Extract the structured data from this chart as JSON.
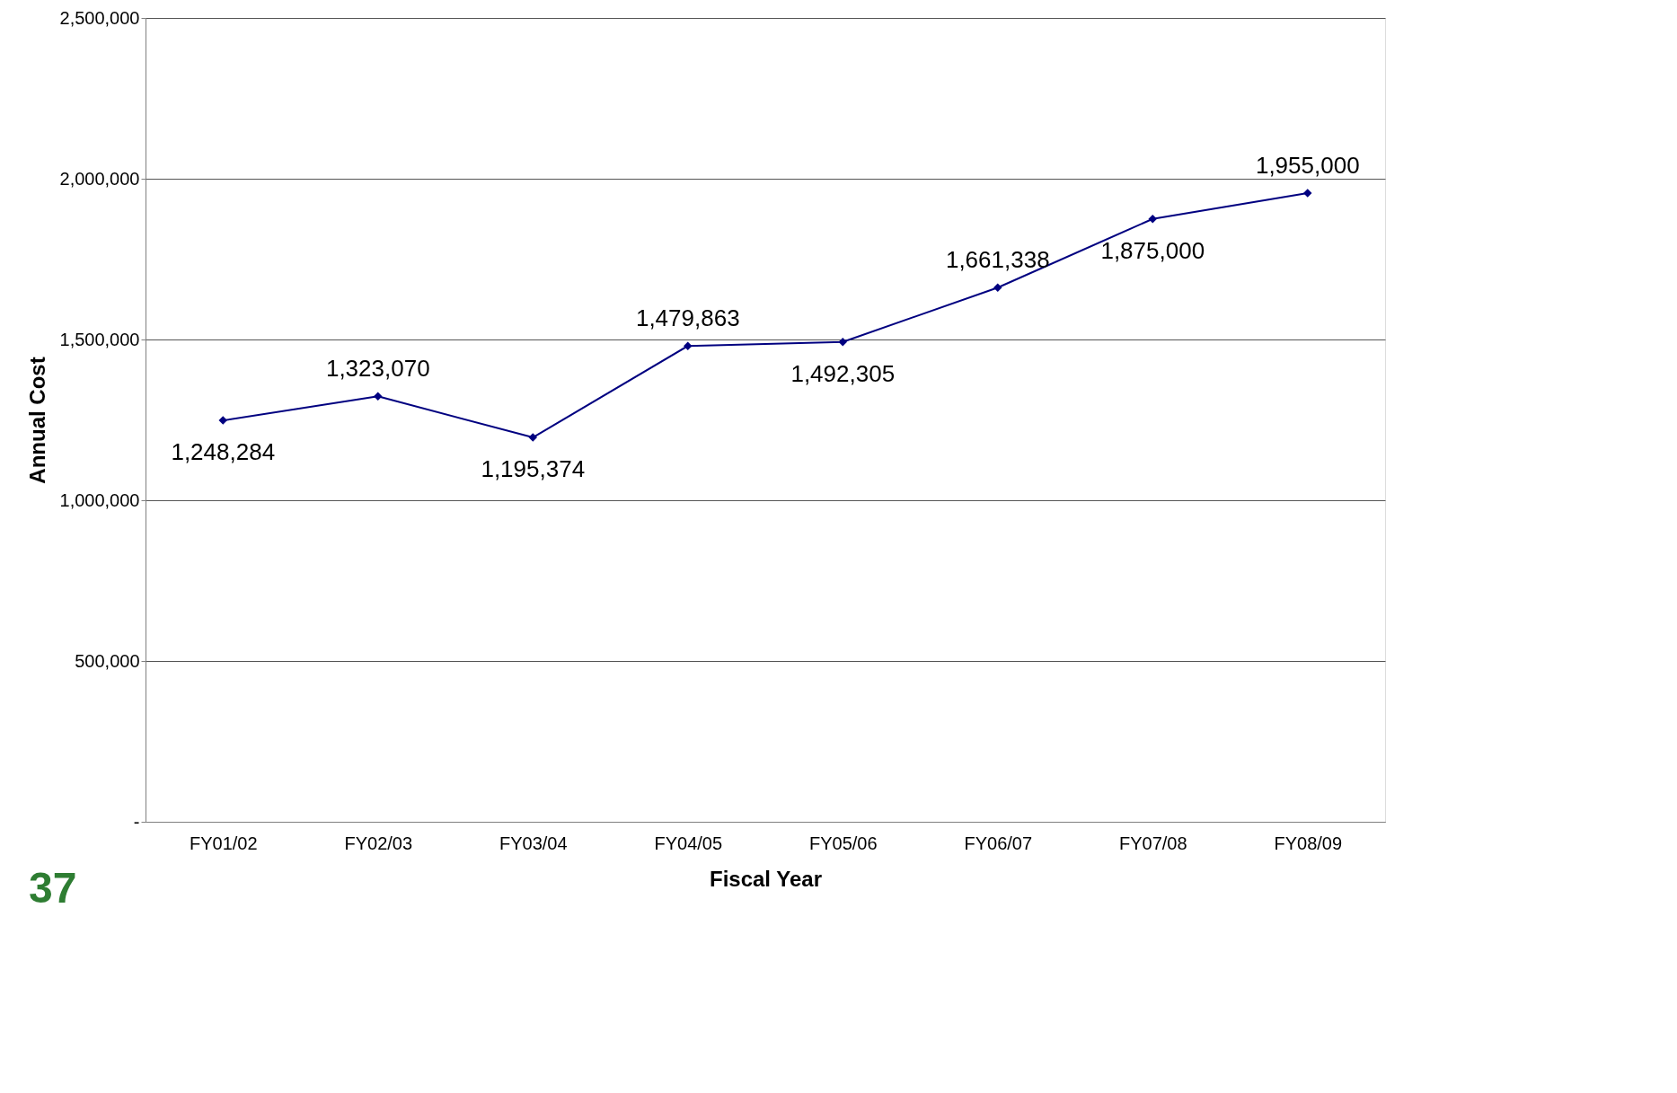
{
  "chart_data": {
    "type": "line",
    "xlabel": "Fiscal Year",
    "ylabel": "Annual Cost",
    "categories": [
      "FY01/02",
      "FY02/03",
      "FY03/04",
      "FY04/05",
      "FY05/06",
      "FY06/07",
      "FY07/08",
      "FY08/09"
    ],
    "series": [
      {
        "color": "#000080",
        "values": [
          1248284,
          1323070,
          1195374,
          1479863,
          1492305,
          1661338,
          1875000,
          1955000
        ],
        "value_labels": [
          "1,248,284",
          "1,323,070",
          "1,195,374",
          "1,479,863",
          "1,492,305",
          "1,661,338",
          "1,875,000",
          "1,955,000"
        ]
      }
    ],
    "marker": "diamond",
    "line_style": "solid",
    "grid": "y",
    "ylim": [
      0,
      2500000
    ],
    "yticks": [
      {
        "value": 0,
        "label": "-"
      },
      {
        "value": 500000,
        "label": "500,000"
      },
      {
        "value": 1000000,
        "label": "1,000,000"
      },
      {
        "value": 1500000,
        "label": "1,500,000"
      },
      {
        "value": 2000000,
        "label": "2,000,000"
      },
      {
        "value": 2500000,
        "label": "2,500,000"
      }
    ],
    "annotations": [
      "37"
    ]
  }
}
